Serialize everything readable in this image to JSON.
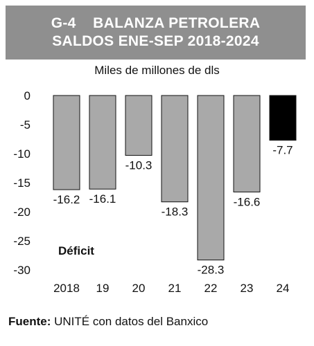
{
  "header": {
    "code": "G-4",
    "title_line1": "BALANZA PETROLERA",
    "title_line2": "SALDOS ENE-SEP 2018-2024"
  },
  "source": {
    "lead": "Fuente:",
    "text": "UNITÉ con datos del Banxico"
  },
  "chart_data": {
    "type": "bar",
    "ylabel": "Miles de millones de dls",
    "annotation": "Déficit",
    "categories": [
      "2018",
      "19",
      "20",
      "21",
      "22",
      "23",
      "24"
    ],
    "values": [
      -16.2,
      -16.1,
      -10.3,
      -18.3,
      -28.3,
      -16.6,
      -7.7
    ],
    "value_labels": [
      "-16.2",
      "-16.1",
      "-10.3",
      "-18.3",
      "-28.3",
      "-16.6",
      "-7.7"
    ],
    "ylim": [
      -30,
      0
    ],
    "yticks": [
      0,
      -5,
      -10,
      -15,
      -20,
      -25,
      -30
    ],
    "ytick_labels": [
      "0",
      "-5",
      "-10",
      "-15",
      "-20",
      "-25",
      "-30"
    ],
    "grid": false,
    "colors": {
      "bar": "#a9a9a9",
      "highlight_bar": "#000000",
      "highlight_index": 6
    }
  }
}
